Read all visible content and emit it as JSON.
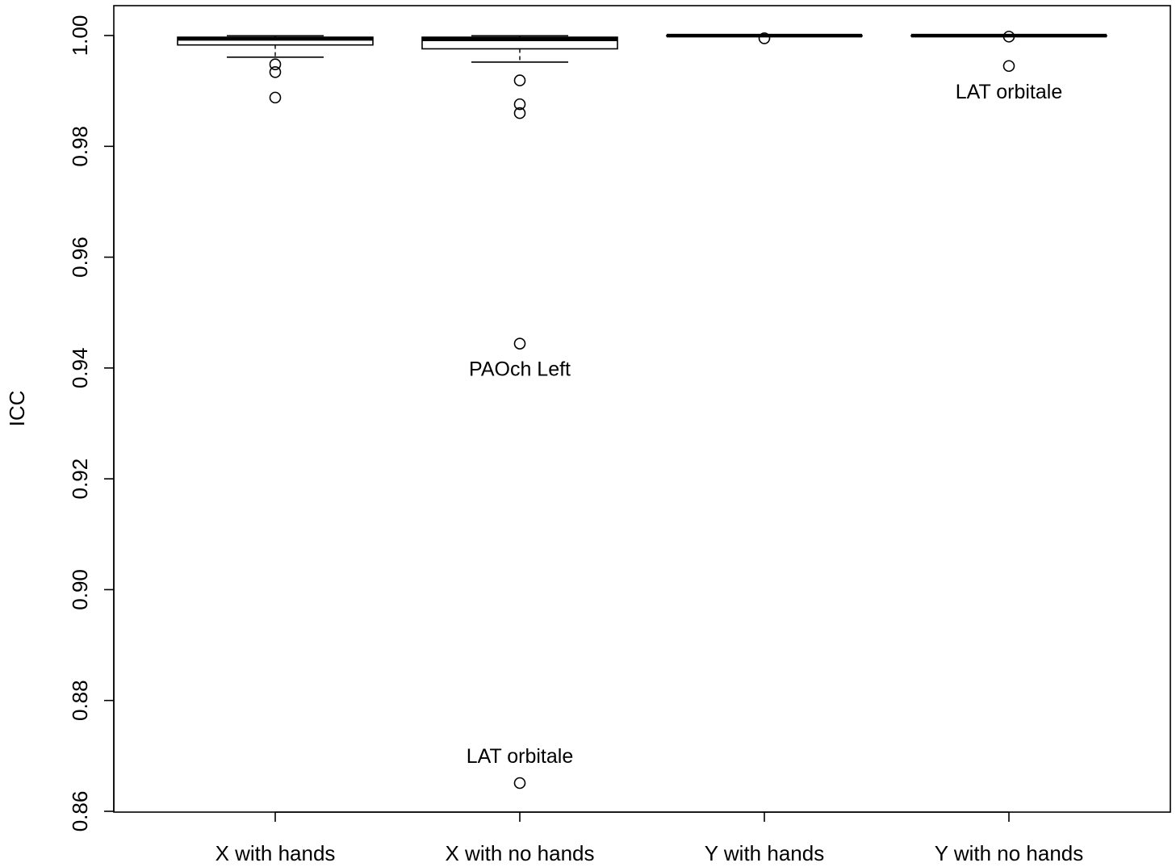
{
  "chart_data": {
    "type": "boxplot",
    "ylabel": "ICC",
    "xlabel": "",
    "title": "",
    "ylim": [
      0.86,
      1.005
    ],
    "yticks": [
      "0.86",
      "0.88",
      "0.90",
      "0.92",
      "0.94",
      "0.96",
      "0.98",
      "1.00"
    ],
    "categories": [
      "X with hands",
      "X with no hands",
      "Y with hands",
      "Y with no hands"
    ],
    "boxes": [
      {
        "name": "X with hands",
        "q1": 0.9983,
        "median": 0.9994,
        "q3": 0.9997,
        "whisker_low": 0.9961,
        "whisker_high": 0.99995,
        "outliers": [
          0.9948,
          0.9934,
          0.9888
        ]
      },
      {
        "name": "X with no hands",
        "q1": 0.9976,
        "median": 0.9993,
        "q3": 0.9997,
        "whisker_low": 0.9952,
        "whisker_high": 0.99995,
        "outliers": [
          0.9919,
          0.9876,
          0.986,
          0.9444,
          0.8651
        ]
      },
      {
        "name": "Y with hands",
        "q1": 0.9999,
        "median": 0.99998,
        "q3": 1.0,
        "whisker_low": 0.9999,
        "whisker_high": 1.0,
        "outliers": [
          0.9995
        ]
      },
      {
        "name": "Y with no hands",
        "q1": 0.9999,
        "median": 0.99998,
        "q3": 1.0,
        "whisker_low": 0.9999,
        "whisker_high": 1.0,
        "outliers": [
          0.9998,
          0.9945
        ]
      }
    ],
    "annotations": [
      {
        "category": "X with no hands",
        "text": "PAOch Left",
        "y": 0.9444
      },
      {
        "category": "X with no hands",
        "text": "LAT orbitale",
        "y": 0.8651
      },
      {
        "category": "Y with no hands",
        "text": "LAT orbitale",
        "y": 0.9945
      }
    ],
    "grid": false,
    "legend": "none"
  }
}
